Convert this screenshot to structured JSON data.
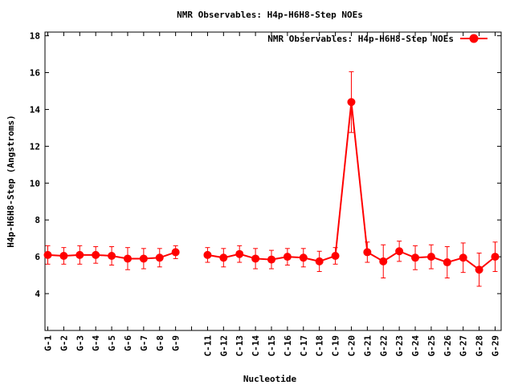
{
  "chart_data": {
    "type": "line",
    "title": "NMR Observables: H4p-H6H8-Step NOEs",
    "xlabel": "Nucleotide",
    "ylabel": "H4p-H6H8-Step (Angstroms)",
    "ylim": [
      2,
      18.2
    ],
    "yticks": [
      4,
      6,
      8,
      10,
      12,
      14,
      16,
      18
    ],
    "grid": false,
    "legend": {
      "placement": "top-right"
    },
    "categories": [
      "G-1",
      "G-2",
      "G-3",
      "G-4",
      "G-5",
      "G-6",
      "G-7",
      "G-8",
      "G-9",
      "",
      "C-11",
      "G-12",
      "C-13",
      "C-14",
      "C-15",
      "C-16",
      "C-17",
      "C-18",
      "C-19",
      "C-20",
      "G-21",
      "G-22",
      "G-23",
      "G-24",
      "G-25",
      "G-26",
      "G-27",
      "G-28",
      "G-29"
    ],
    "series": [
      {
        "name": "NMR Observables: H4p-H6H8-Step NOEs",
        "color": "#ff0000",
        "values": [
          6.1,
          6.05,
          6.1,
          6.1,
          6.05,
          5.9,
          5.9,
          5.95,
          6.25,
          null,
          6.1,
          5.95,
          6.15,
          5.9,
          5.85,
          6.0,
          5.95,
          5.75,
          6.05,
          14.4,
          6.25,
          5.75,
          6.3,
          5.95,
          6.0,
          5.7,
          5.95,
          5.3,
          6.0
        ],
        "errors": [
          0.5,
          0.45,
          0.5,
          0.45,
          0.5,
          0.6,
          0.55,
          0.5,
          0.35,
          null,
          0.4,
          0.5,
          0.45,
          0.55,
          0.5,
          0.45,
          0.5,
          0.55,
          0.45,
          1.65,
          0.55,
          0.9,
          0.55,
          0.65,
          0.65,
          0.85,
          0.8,
          0.9,
          0.8
        ]
      }
    ]
  }
}
